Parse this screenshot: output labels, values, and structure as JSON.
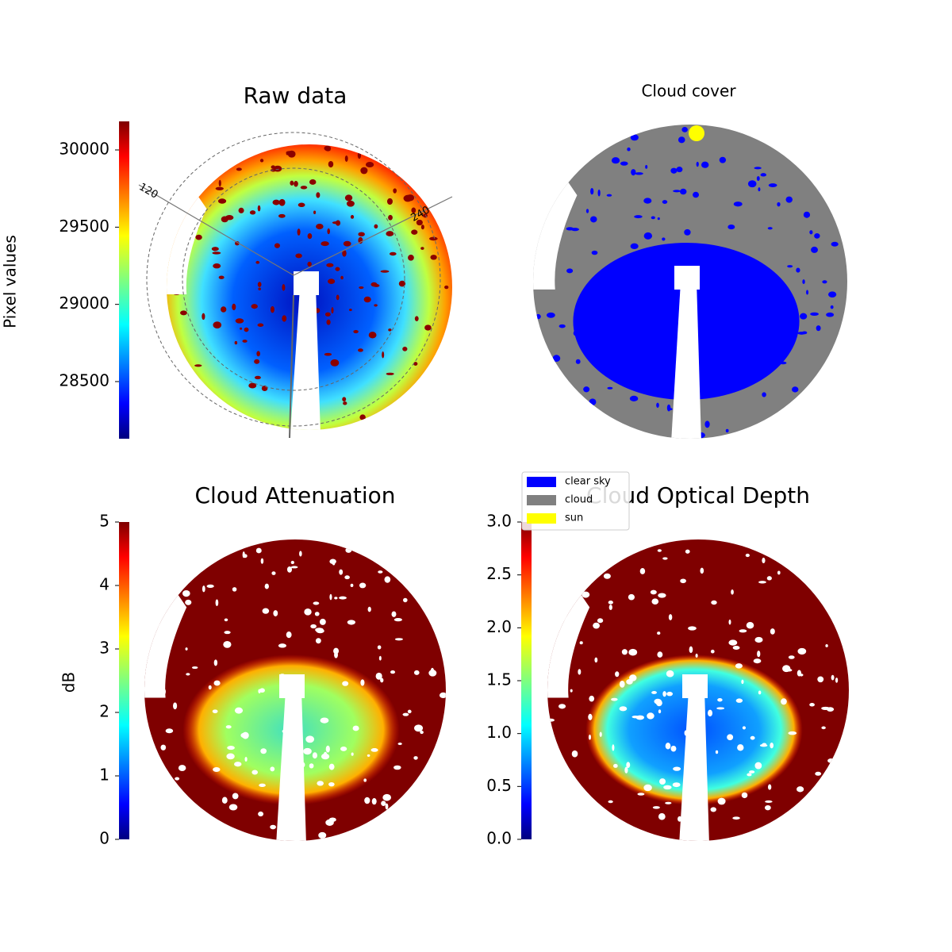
{
  "chart_data": [
    {
      "type": "image",
      "title": "Raw data",
      "angle_ticks": [
        120,
        240
      ],
      "colorbar": {
        "label": "Pixel values",
        "ylim": [
          28130,
          30185
        ],
        "yticks": [
          28500,
          29000,
          29500,
          30000
        ]
      }
    },
    {
      "type": "categorical-image",
      "title": "Cloud cover",
      "legend": [
        {
          "name": "clear sky",
          "color": "#0000ff"
        },
        {
          "name": "cloud",
          "color": "#808080"
        },
        {
          "name": "sun",
          "color": "#ffff00"
        }
      ]
    },
    {
      "type": "image",
      "title": "Cloud Attenuation",
      "colorbar": {
        "label": "dB",
        "ylim": [
          0,
          5
        ],
        "yticks": [
          0,
          1,
          2,
          3,
          4,
          5
        ]
      }
    },
    {
      "type": "image",
      "title": "Cloud Optical Depth",
      "colorbar": {
        "ylim": [
          0,
          3
        ],
        "yticks": [
          {
            "value": 0,
            "label": "0.0"
          },
          0.5,
          {
            "value": 1,
            "label": "1.0"
          },
          1.5,
          {
            "value": 2,
            "label": "2.0"
          },
          2.5,
          {
            "value": 3,
            "label": "3.0"
          }
        ]
      }
    }
  ]
}
